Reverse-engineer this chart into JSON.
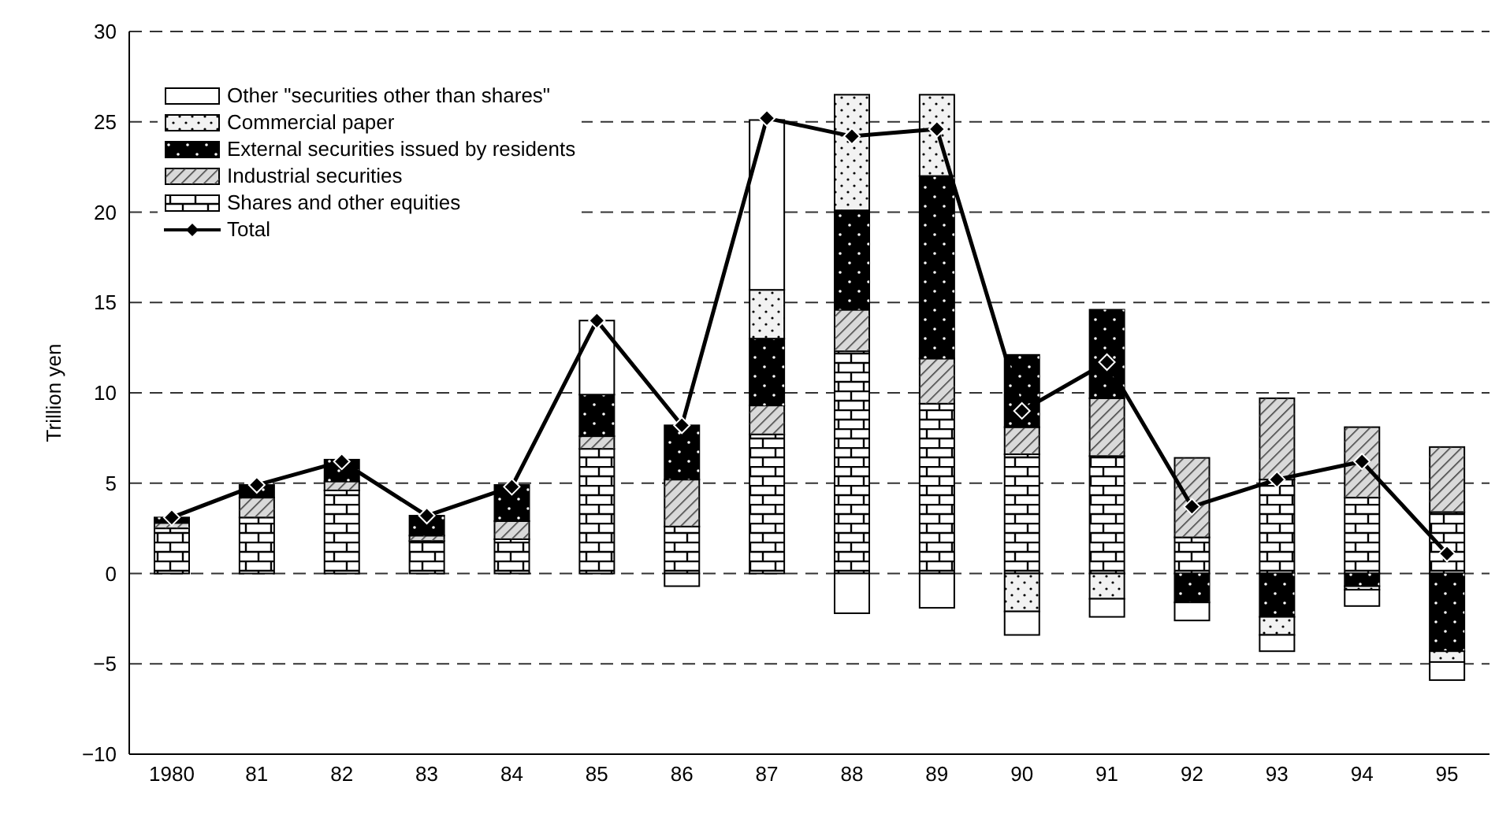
{
  "chart_data": {
    "type": "bar",
    "stacked": true,
    "ylabel": "Trillion yen",
    "categories": [
      "1980",
      "81",
      "82",
      "83",
      "84",
      "85",
      "86",
      "87",
      "88",
      "89",
      "90",
      "91",
      "92",
      "93",
      "94",
      "95"
    ],
    "series": [
      {
        "name": "Shares and other equities",
        "color": "#ffffff",
        "values": [
          2.5,
          3.1,
          4.6,
          1.8,
          1.9,
          6.9,
          2.6,
          7.7,
          12.3,
          9.4,
          6.6,
          6.5,
          2.0,
          5.2,
          4.2,
          3.4
        ]
      },
      {
        "name": "Industrial securities",
        "color": "#d9d9d9",
        "values": [
          0.3,
          1.1,
          0.5,
          0.3,
          1.0,
          0.7,
          2.6,
          1.6,
          2.3,
          2.5,
          1.5,
          3.2,
          4.4,
          4.5,
          3.9,
          3.6
        ]
      },
      {
        "name": "External securities issued by residents",
        "color": "#000000",
        "values": [
          0.3,
          0.7,
          1.2,
          1.1,
          2.0,
          2.3,
          3.0,
          3.7,
          5.5,
          10.1,
          4.0,
          4.9,
          -1.6,
          -2.4,
          -0.7,
          -4.3
        ]
      },
      {
        "name": "Commercial paper",
        "color": "#f2f2f2",
        "values": [
          null,
          null,
          null,
          null,
          null,
          null,
          null,
          2.7,
          6.4,
          4.5,
          -2.1,
          -1.4,
          null,
          -1.0,
          -0.2,
          -0.6
        ]
      },
      {
        "name": "Other \"securities other than shares\"",
        "color": "#ffffff",
        "values": [
          null,
          null,
          null,
          null,
          null,
          4.1,
          -0.7,
          9.4,
          -2.2,
          -1.9,
          -1.3,
          -1.0,
          -1.0,
          -0.9,
          -0.9,
          -1.0
        ]
      },
      {
        "name": "Total",
        "type": "line",
        "color": "#000000",
        "values": [
          3.1,
          4.9,
          6.2,
          3.2,
          4.8,
          14.0,
          8.2,
          25.2,
          24.2,
          24.6,
          9.0,
          11.7,
          3.7,
          5.2,
          6.2,
          1.1
        ]
      }
    ],
    "ylim": [
      -10,
      30
    ],
    "yticks": [
      -10,
      -5,
      0,
      5,
      10,
      15,
      20,
      25,
      30
    ],
    "grid": "y",
    "legend": "top left",
    "marker": "diamond",
    "line_style": "solid"
  }
}
